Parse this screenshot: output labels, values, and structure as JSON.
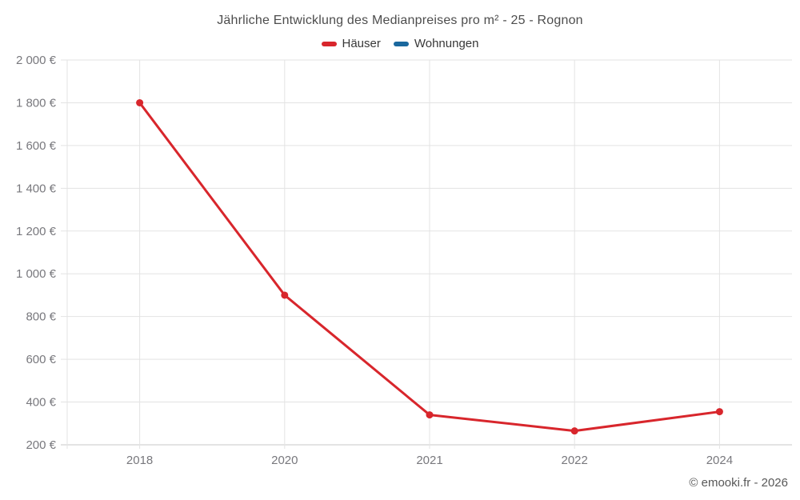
{
  "title": "Jährliche Entwicklung des Medianpreises pro m² - 25 - Rognon",
  "legend": {
    "items": [
      {
        "label": "Häuser",
        "color": "#d8262c"
      },
      {
        "label": "Wohnungen",
        "color": "#1a689e"
      }
    ]
  },
  "footer": {
    "copyright": "© emooki.fr - 2026"
  },
  "colors": {
    "hauser": "#d8262c",
    "wohnungen": "#1a689e",
    "gridline": "#e3e3e3",
    "axis_line": "#c9c9c9",
    "tick_label": "#78787d",
    "title_text": "#4d4d4d"
  },
  "chart_data": {
    "type": "line",
    "title": "Jährliche Entwicklung des Medianpreises pro m² - 25 - Rognon",
    "categories": [
      "2018",
      "2020",
      "2021",
      "2022",
      "2024"
    ],
    "series": [
      {
        "name": "Häuser",
        "color": "#d8262c",
        "values": [
          1800,
          900,
          340,
          265,
          355
        ]
      },
      {
        "name": "Wohnungen",
        "color": "#1a689e",
        "values": [
          null,
          null,
          null,
          null,
          null
        ]
      }
    ],
    "xlabel": "",
    "ylabel": "",
    "y_unit": "€",
    "ylim": [
      200,
      2000
    ],
    "y_tick_step": 200,
    "y_tick_labels": [
      "200 €",
      "400 €",
      "600 €",
      "800 €",
      "1 000 €",
      "1 200 €",
      "1 400 €",
      "1 600 €",
      "1 800 €",
      "2 000 €"
    ],
    "grid": true,
    "legend_position": "top"
  }
}
